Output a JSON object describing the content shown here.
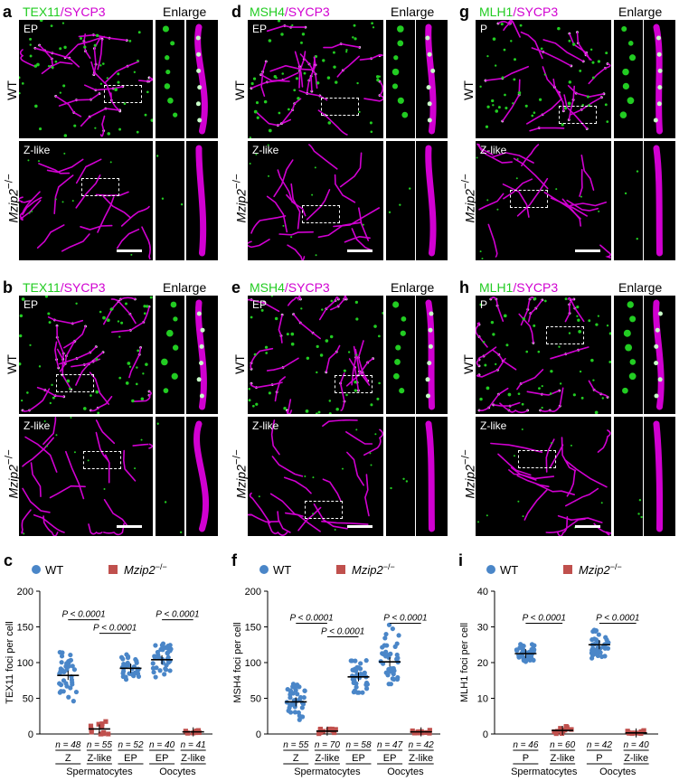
{
  "panels": [
    {
      "letter": "a",
      "marker": "TEX11",
      "stage_top": "EP",
      "stage_bottom": "Z-like"
    },
    {
      "letter": "b",
      "marker": "TEX11",
      "stage_top": "EP",
      "stage_bottom": "Z-like"
    },
    {
      "letter": "d",
      "marker": "MSH4",
      "stage_top": "EP",
      "stage_bottom": "Z-like"
    },
    {
      "letter": "e",
      "marker": "MSH4",
      "stage_top": "EP",
      "stage_bottom": "Z-like"
    },
    {
      "letter": "g",
      "marker": "MLH1",
      "stage_top": "P",
      "stage_bottom": "Z-like"
    },
    {
      "letter": "h",
      "marker": "MLH1",
      "stage_top": "P",
      "stage_bottom": "Z-like"
    }
  ],
  "labels": {
    "sycp3": "/SYCP3",
    "enlarge": "Enlarge",
    "wt": "WT",
    "mutant": "Mzip2",
    "mutant_sup": "−/−",
    "chart_c": "c",
    "chart_f": "f",
    "chart_i": "i"
  },
  "colors": {
    "wt": "#4a86c8",
    "mutant": "#c0504d",
    "green": "#22cc22",
    "magenta": "#d100d1"
  },
  "chart_data": [
    {
      "type": "scatter",
      "panel": "c",
      "ylabel": "TEX11 foci per cell",
      "ylim": [
        0,
        200
      ],
      "yticks": [
        0,
        50,
        100,
        150,
        200
      ],
      "legend": [
        "WT",
        "Mzip2−/−"
      ],
      "groups": [
        {
          "label": "Z",
          "n": "n = 48",
          "genotype": "WT",
          "mean": 82,
          "spread": [
            40,
            120
          ]
        },
        {
          "label": "Z-like",
          "n": "n = 55",
          "genotype": "Mzip2",
          "mean": 7,
          "spread": [
            0,
            30
          ]
        },
        {
          "label": "EP",
          "n": "n = 52",
          "genotype": "WT",
          "mean": 92,
          "spread": [
            75,
            120
          ]
        },
        {
          "label": "EP",
          "n": "n = 40",
          "genotype": "WT",
          "mean": 104,
          "spread": [
            75,
            135
          ]
        },
        {
          "label": "Z-like",
          "n": "n = 41",
          "genotype": "Mzip2",
          "mean": 3,
          "spread": [
            0,
            6
          ]
        }
      ],
      "categories": [
        "Spermatocytes",
        "Oocytes"
      ],
      "pvals": [
        {
          "text": "P < 0.0001",
          "from": 0,
          "to": 1,
          "y": 160
        },
        {
          "text": "P < 0.0001",
          "from": 1,
          "to": 2,
          "y": 141
        },
        {
          "text": "P < 0.0001",
          "from": 3,
          "to": 4,
          "y": 160
        }
      ]
    },
    {
      "type": "scatter",
      "panel": "f",
      "ylabel": "MSH4 foci per cell",
      "ylim": [
        0,
        200
      ],
      "yticks": [
        0,
        50,
        100,
        150,
        200
      ],
      "legend": [
        "WT",
        "Mzip2−/−"
      ],
      "groups": [
        {
          "label": "Z",
          "n": "n = 55",
          "genotype": "WT",
          "mean": 45,
          "spread": [
            10,
            75
          ]
        },
        {
          "label": "Z-like",
          "n": "n = 70",
          "genotype": "Mzip2",
          "mean": 4,
          "spread": [
            0,
            8
          ]
        },
        {
          "label": "EP",
          "n": "n = 58",
          "genotype": "WT",
          "mean": 80,
          "spread": [
            58,
            115
          ]
        },
        {
          "label": "EP",
          "n": "n = 47",
          "genotype": "WT",
          "mean": 101,
          "spread": [
            70,
            160
          ]
        },
        {
          "label": "Z-like",
          "n": "n = 42",
          "genotype": "Mzip2",
          "mean": 3,
          "spread": [
            0,
            6
          ]
        }
      ],
      "categories": [
        "Spermatocytes",
        "Oocytes"
      ],
      "pvals": [
        {
          "text": "P < 0.0001",
          "from": 0,
          "to": 1,
          "y": 155
        },
        {
          "text": "P < 0.0001",
          "from": 1,
          "to": 2,
          "y": 136
        },
        {
          "text": "P < 0.0001",
          "from": 3,
          "to": 4,
          "y": 155
        }
      ]
    },
    {
      "type": "scatter",
      "panel": "i",
      "ylabel": "MLH1 foci per cell",
      "ylim": [
        0,
        40
      ],
      "yticks": [
        0,
        10,
        20,
        30,
        40
      ],
      "legend": [
        "WT",
        "Mzip2−/−"
      ],
      "groups": [
        {
          "label": "P",
          "n": "n = 46",
          "genotype": "WT",
          "mean": 22.5,
          "spread": [
            20,
            26
          ]
        },
        {
          "label": "Z-like",
          "n": "n = 60",
          "genotype": "Mzip2",
          "mean": 1,
          "spread": [
            0,
            3
          ]
        },
        {
          "label": "P",
          "n": "n = 42",
          "genotype": "WT",
          "mean": 25,
          "spread": [
            21,
            30
          ]
        },
        {
          "label": "Z-like",
          "n": "n = 40",
          "genotype": "Mzip2",
          "mean": 0.3,
          "spread": [
            0,
            1
          ]
        }
      ],
      "categories": [
        "Spermatocytes",
        "Oocytes"
      ],
      "pvals": [
        {
          "text": "P < 0.0001",
          "from": 0,
          "to": 1,
          "y": 31
        },
        {
          "text": "P < 0.0001",
          "from": 2,
          "to": 3,
          "y": 31
        }
      ]
    }
  ]
}
